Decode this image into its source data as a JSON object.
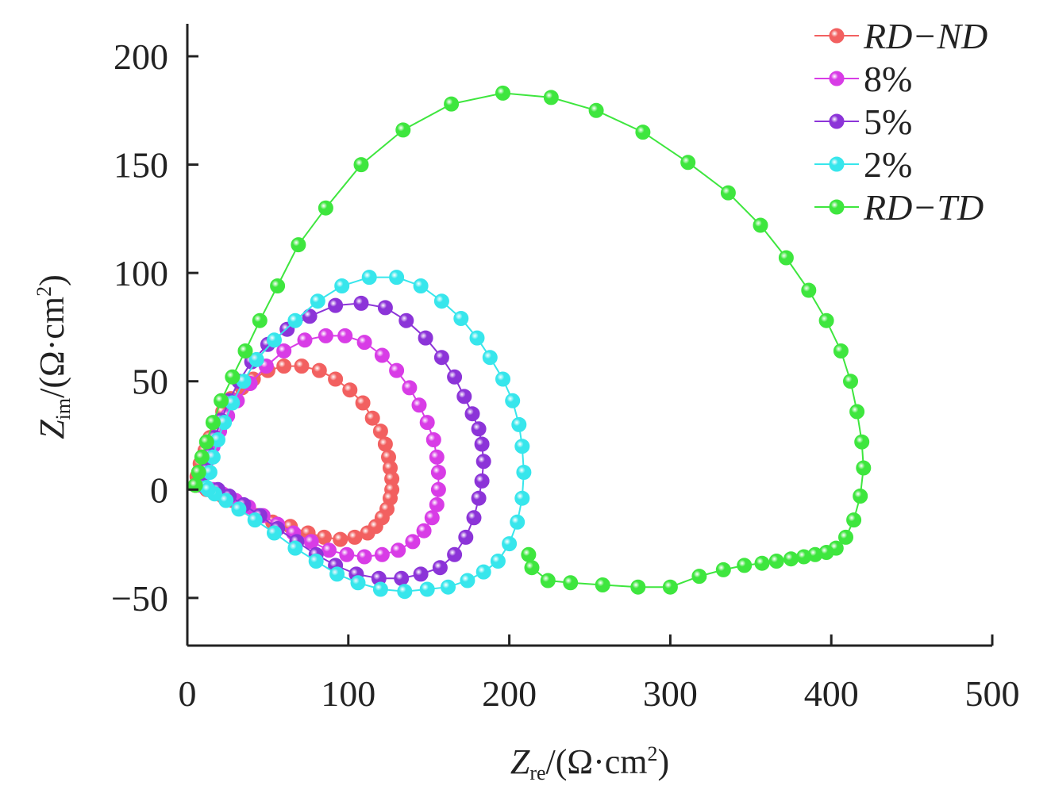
{
  "chart_data": {
    "type": "scatter",
    "xlabel": {
      "symbol": "Z",
      "sub": "re",
      "unit": "/(Ω·cm",
      "sup": "2",
      "close": ")"
    },
    "ylabel": {
      "symbol": "Z",
      "sub": "im",
      "unit": "/(Ω·cm",
      "sup": "2",
      "close": ")"
    },
    "xlim": [
      0,
      500
    ],
    "ylim": [
      -72,
      215
    ],
    "xticks": [
      0,
      100,
      200,
      300,
      400,
      500
    ],
    "xtick_labels": [
      "0",
      "100",
      "200",
      "300",
      "400",
      "500"
    ],
    "yticks": [
      -50,
      0,
      50,
      100,
      150,
      200
    ],
    "ytick_labels": [
      "−50",
      "0",
      "50",
      "100",
      "150",
      "200"
    ],
    "grid": false,
    "legend_position": "top-right",
    "series": [
      {
        "name": "RD−ND",
        "italic": true,
        "color": "#f26060",
        "points": [
          [
            5,
            2
          ],
          [
            6,
            6
          ],
          [
            8,
            12
          ],
          [
            11,
            18
          ],
          [
            14,
            24
          ],
          [
            18,
            30
          ],
          [
            22,
            36
          ],
          [
            27,
            42
          ],
          [
            34,
            47
          ],
          [
            41,
            51
          ],
          [
            50,
            55
          ],
          [
            60,
            57
          ],
          [
            71,
            57
          ],
          [
            82,
            55
          ],
          [
            92,
            51
          ],
          [
            101,
            46
          ],
          [
            109,
            40
          ],
          [
            115,
            33
          ],
          [
            120,
            27
          ],
          [
            123,
            21
          ],
          [
            125,
            15
          ],
          [
            126,
            10
          ],
          [
            127,
            5
          ],
          [
            127,
            0
          ],
          [
            126,
            -4
          ],
          [
            124,
            -9
          ],
          [
            121,
            -13
          ],
          [
            117,
            -17
          ],
          [
            112,
            -20
          ],
          [
            104,
            -22
          ],
          [
            95,
            -23
          ],
          [
            85,
            -22
          ],
          [
            75,
            -20
          ],
          [
            64,
            -17
          ],
          [
            53,
            -15
          ],
          [
            43,
            -12
          ],
          [
            35,
            -8
          ],
          [
            28,
            -5
          ],
          [
            22,
            -3
          ],
          [
            16,
            -1
          ],
          [
            12,
            0
          ]
        ]
      },
      {
        "name": "8%",
        "italic": false,
        "color": "#d83ce6",
        "points": [
          [
            8,
            2
          ],
          [
            10,
            8
          ],
          [
            13,
            14
          ],
          [
            16,
            20
          ],
          [
            20,
            27
          ],
          [
            25,
            34
          ],
          [
            31,
            41
          ],
          [
            39,
            49
          ],
          [
            49,
            57
          ],
          [
            60,
            64
          ],
          [
            73,
            69
          ],
          [
            86,
            71
          ],
          [
            98,
            71
          ],
          [
            110,
            68
          ],
          [
            121,
            62
          ],
          [
            130,
            55
          ],
          [
            138,
            47
          ],
          [
            144,
            39
          ],
          [
            149,
            31
          ],
          [
            153,
            23
          ],
          [
            155,
            15
          ],
          [
            156,
            8
          ],
          [
            156,
            0
          ],
          [
            155,
            -7
          ],
          [
            152,
            -13
          ],
          [
            147,
            -19
          ],
          [
            140,
            -24
          ],
          [
            131,
            -28
          ],
          [
            121,
            -30
          ],
          [
            110,
            -31
          ],
          [
            99,
            -30
          ],
          [
            88,
            -28
          ],
          [
            77,
            -24
          ],
          [
            66,
            -20
          ],
          [
            56,
            -16
          ],
          [
            47,
            -12
          ],
          [
            38,
            -8
          ],
          [
            30,
            -5
          ],
          [
            22,
            -2
          ],
          [
            16,
            0
          ]
        ]
      },
      {
        "name": "5%",
        "italic": false,
        "color": "#8c34d8",
        "points": [
          [
            10,
            2
          ],
          [
            12,
            9
          ],
          [
            14,
            16
          ],
          [
            17,
            24
          ],
          [
            21,
            32
          ],
          [
            26,
            41
          ],
          [
            32,
            50
          ],
          [
            40,
            59
          ],
          [
            50,
            67
          ],
          [
            62,
            74
          ],
          [
            76,
            80
          ],
          [
            92,
            85
          ],
          [
            108,
            86
          ],
          [
            123,
            84
          ],
          [
            136,
            78
          ],
          [
            148,
            70
          ],
          [
            158,
            61
          ],
          [
            166,
            52
          ],
          [
            172,
            43
          ],
          [
            177,
            35
          ],
          [
            181,
            28
          ],
          [
            183,
            21
          ],
          [
            184,
            13
          ],
          [
            183,
            4
          ],
          [
            181,
            -4
          ],
          [
            178,
            -13
          ],
          [
            173,
            -22
          ],
          [
            166,
            -30
          ],
          [
            157,
            -36
          ],
          [
            145,
            -39
          ],
          [
            133,
            -41
          ],
          [
            119,
            -41
          ],
          [
            105,
            -39
          ],
          [
            92,
            -35
          ],
          [
            80,
            -30
          ],
          [
            68,
            -24
          ],
          [
            56,
            -18
          ],
          [
            45,
            -12
          ],
          [
            35,
            -7
          ],
          [
            26,
            -3
          ],
          [
            19,
            0
          ]
        ]
      },
      {
        "name": "2%",
        "italic": false,
        "color": "#37e6ec",
        "points": [
          [
            12,
            1
          ],
          [
            14,
            8
          ],
          [
            16,
            15
          ],
          [
            19,
            23
          ],
          [
            23,
            31
          ],
          [
            28,
            40
          ],
          [
            35,
            50
          ],
          [
            43,
            60
          ],
          [
            54,
            69
          ],
          [
            67,
            78
          ],
          [
            81,
            87
          ],
          [
            96,
            94
          ],
          [
            113,
            98
          ],
          [
            130,
            98
          ],
          [
            145,
            94
          ],
          [
            158,
            87
          ],
          [
            170,
            79
          ],
          [
            180,
            70
          ],
          [
            188,
            61
          ],
          [
            196,
            51
          ],
          [
            202,
            41
          ],
          [
            206,
            30
          ],
          [
            208,
            20
          ],
          [
            209,
            8
          ],
          [
            208,
            -4
          ],
          [
            205,
            -15
          ],
          [
            200,
            -25
          ],
          [
            193,
            -33
          ],
          [
            184,
            -38
          ],
          [
            174,
            -42
          ],
          [
            162,
            -45
          ],
          [
            149,
            -46
          ],
          [
            135,
            -47
          ],
          [
            120,
            -46
          ],
          [
            106,
            -43
          ],
          [
            93,
            -39
          ],
          [
            80,
            -33
          ],
          [
            67,
            -27
          ],
          [
            54,
            -20
          ],
          [
            42,
            -14
          ],
          [
            32,
            -9
          ],
          [
            24,
            -5
          ],
          [
            17,
            -2
          ],
          [
            13,
            0
          ]
        ]
      },
      {
        "name": "RD−TD",
        "italic": true,
        "color": "#3ee63e",
        "points": [
          [
            5,
            2
          ],
          [
            7,
            8
          ],
          [
            9,
            15
          ],
          [
            12,
            22
          ],
          [
            16,
            31
          ],
          [
            21,
            41
          ],
          [
            28,
            52
          ],
          [
            36,
            64
          ],
          [
            45,
            78
          ],
          [
            56,
            94
          ],
          [
            69,
            113
          ],
          [
            86,
            130
          ],
          [
            108,
            150
          ],
          [
            134,
            166
          ],
          [
            164,
            178
          ],
          [
            196,
            183
          ],
          [
            226,
            181
          ],
          [
            254,
            175
          ],
          [
            283,
            165
          ],
          [
            311,
            151
          ],
          [
            336,
            137
          ],
          [
            356,
            122
          ],
          [
            372,
            107
          ],
          [
            386,
            92
          ],
          [
            397,
            78
          ],
          [
            406,
            64
          ],
          [
            412,
            50
          ],
          [
            416,
            36
          ],
          [
            419,
            22
          ],
          [
            420,
            10
          ],
          [
            418,
            -3
          ],
          [
            414,
            -14
          ],
          [
            409,
            -22
          ],
          [
            403,
            -27
          ],
          [
            397,
            -29
          ],
          [
            390,
            -30
          ],
          [
            383,
            -31
          ],
          [
            375,
            -32
          ],
          [
            366,
            -33
          ],
          [
            357,
            -34
          ],
          [
            346,
            -35
          ],
          [
            333,
            -37
          ],
          [
            318,
            -40
          ],
          [
            300,
            -45
          ],
          [
            280,
            -45
          ],
          [
            258,
            -44
          ],
          [
            238,
            -43
          ],
          [
            224,
            -42
          ],
          [
            214,
            -36
          ],
          [
            212,
            -30
          ]
        ]
      }
    ]
  }
}
